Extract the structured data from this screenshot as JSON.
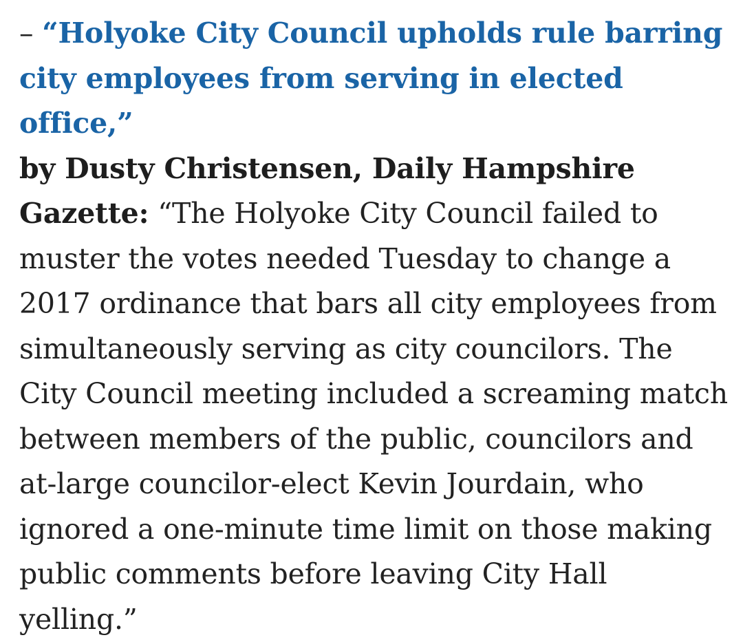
{
  "article": {
    "dash": "– ",
    "headline": "“Holyoke City Council upholds rule barring city employees from serving in elected office,”",
    "byline_prefix": "by ",
    "author": "Dusty Christensen",
    "separator": ", ",
    "publication": "Daily Hampshire Gazette:",
    "quote": "“The Holyoke City Council failed to muster the votes needed Tuesday to change a 2017 ordinance that bars all city employees from simultaneously serving as city councilors. The City Council meeting included a screaming match between members of the public, councilors and at-large councilor-elect Kevin Jourdain, who ignored a one-minute time limit on those making public comments before leaving City Hall yelling.”"
  },
  "colors": {
    "link": "#1a64a6",
    "text": "#222222",
    "background": "#ffffff"
  }
}
